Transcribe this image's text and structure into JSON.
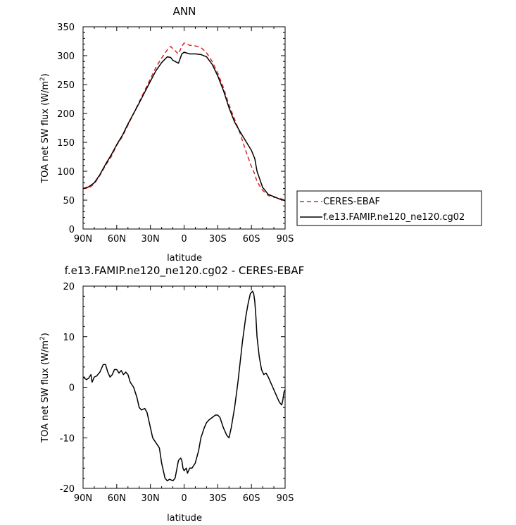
{
  "chart_data": [
    {
      "type": "line",
      "title": "ANN",
      "xlabel": "latitude",
      "ylabel_parts": {
        "prefix": "TOA net SW flux (W/m",
        "sup": "2",
        "suffix": ")"
      },
      "x_ticks": [
        90,
        60,
        30,
        0,
        -30,
        -60,
        -90
      ],
      "x_tick_labels": [
        "90N",
        "60N",
        "30N",
        "0",
        "30S",
        "60S",
        "90S"
      ],
      "xlim": [
        90,
        -90
      ],
      "y_ticks": [
        0,
        50,
        100,
        150,
        200,
        250,
        300,
        350
      ],
      "ylim": [
        0,
        350
      ],
      "grid": false,
      "legend": "outside-right",
      "series": [
        {
          "name": "CERES-EBAF",
          "color": "#dd2222",
          "dash": "dashed",
          "x": [
            90,
            85,
            80,
            75,
            70,
            65,
            60,
            55,
            50,
            45,
            40,
            35,
            30,
            25,
            20,
            15,
            12,
            10,
            5,
            2,
            0,
            -5,
            -10,
            -15,
            -20,
            -25,
            -30,
            -35,
            -40,
            -45,
            -50,
            -55,
            -60,
            -63,
            -65,
            -70,
            -75,
            -80,
            -85,
            -90
          ],
          "y": [
            70,
            71,
            78,
            93,
            110,
            125,
            145,
            160,
            180,
            200,
            220,
            240,
            260,
            280,
            296,
            310,
            316,
            312,
            303,
            316,
            322,
            318,
            317,
            314,
            305,
            290,
            270,
            245,
            215,
            190,
            165,
            135,
            108,
            95,
            82,
            67,
            58,
            55,
            53,
            50
          ]
        },
        {
          "name": "f.e13.FAMIP.ne120_ne120.cg02",
          "color": "#000000",
          "dash": "solid",
          "x": [
            90,
            85,
            80,
            75,
            70,
            65,
            60,
            55,
            50,
            45,
            40,
            35,
            30,
            25,
            20,
            15,
            12,
            10,
            5,
            2,
            0,
            -5,
            -10,
            -15,
            -20,
            -25,
            -30,
            -35,
            -40,
            -45,
            -50,
            -55,
            -60,
            -63,
            -65,
            -70,
            -75,
            -80,
            -85,
            -90
          ],
          "y": [
            70,
            73,
            80,
            94,
            112,
            128,
            146,
            162,
            182,
            200,
            218,
            237,
            256,
            274,
            288,
            298,
            297,
            292,
            287,
            303,
            306,
            303,
            303,
            302,
            298,
            285,
            265,
            240,
            210,
            185,
            168,
            152,
            136,
            122,
            100,
            72,
            60,
            56,
            52,
            49
          ]
        }
      ]
    },
    {
      "type": "line",
      "title": "f.e13.FAMIP.ne120_ne120.cg02 - CERES-EBAF",
      "xlabel": "latitude",
      "ylabel_parts": {
        "prefix": "TOA net SW flux (W/m",
        "sup": "2",
        "suffix": ")"
      },
      "x_ticks": [
        90,
        60,
        30,
        0,
        -30,
        -60,
        -90
      ],
      "x_tick_labels": [
        "90N",
        "60N",
        "30N",
        "0",
        "30S",
        "60S",
        "90S"
      ],
      "xlim": [
        90,
        -90
      ],
      "y_ticks": [
        -20,
        -10,
        0,
        10,
        20
      ],
      "ylim": [
        -20,
        20
      ],
      "grid": false,
      "series": [
        {
          "color": "#000000",
          "dash": "solid",
          "x": [
            90,
            87,
            85,
            83,
            82,
            80,
            78,
            75,
            72,
            70,
            68,
            66,
            64,
            62,
            60,
            58,
            56,
            54,
            52,
            50,
            48,
            45,
            42,
            40,
            38,
            35,
            33,
            30,
            28,
            25,
            22,
            20,
            17,
            15,
            13,
            10,
            8,
            5,
            3,
            2,
            1,
            0,
            -2,
            -3,
            -5,
            -7,
            -10,
            -13,
            -15,
            -18,
            -20,
            -22,
            -25,
            -28,
            -30,
            -32,
            -35,
            -38,
            -40,
            -42,
            -45,
            -48,
            -50,
            -52,
            -55,
            -57,
            -59,
            -61,
            -62,
            -63,
            -64,
            -65,
            -67,
            -69,
            -71,
            -73,
            -75,
            -77,
            -79,
            -81,
            -83,
            -85,
            -87,
            -88,
            -89,
            -90
          ],
          "y": [
            2,
            1.5,
            1.8,
            2.5,
            1.0,
            2.0,
            2.2,
            3.0,
            4.5,
            4.5,
            3.0,
            2.0,
            2.5,
            3.5,
            3.5,
            2.8,
            3.3,
            2.5,
            3.0,
            2.5,
            1.0,
            0.0,
            -2.0,
            -4.0,
            -4.5,
            -4.2,
            -5.0,
            -8.0,
            -10.0,
            -11.0,
            -12.0,
            -15.0,
            -18.0,
            -18.5,
            -18.2,
            -18.5,
            -18.0,
            -14.5,
            -14.0,
            -14.5,
            -16.0,
            -16.5,
            -16.0,
            -17.0,
            -16.0,
            -16.0,
            -15.0,
            -12.5,
            -10.0,
            -8.0,
            -7.0,
            -6.5,
            -6.0,
            -5.5,
            -5.5,
            -6.0,
            -8.0,
            -9.5,
            -10.0,
            -8.0,
            -4.0,
            1.0,
            5.0,
            9.0,
            14.0,
            16.5,
            18.5,
            19.0,
            18.5,
            17.0,
            14.0,
            10.0,
            6.0,
            3.5,
            2.5,
            2.8,
            2.0,
            1.0,
            0.0,
            -1.0,
            -2.0,
            -3.0,
            -3.5,
            -2.5,
            -1.0,
            -0.5
          ]
        }
      ]
    }
  ]
}
